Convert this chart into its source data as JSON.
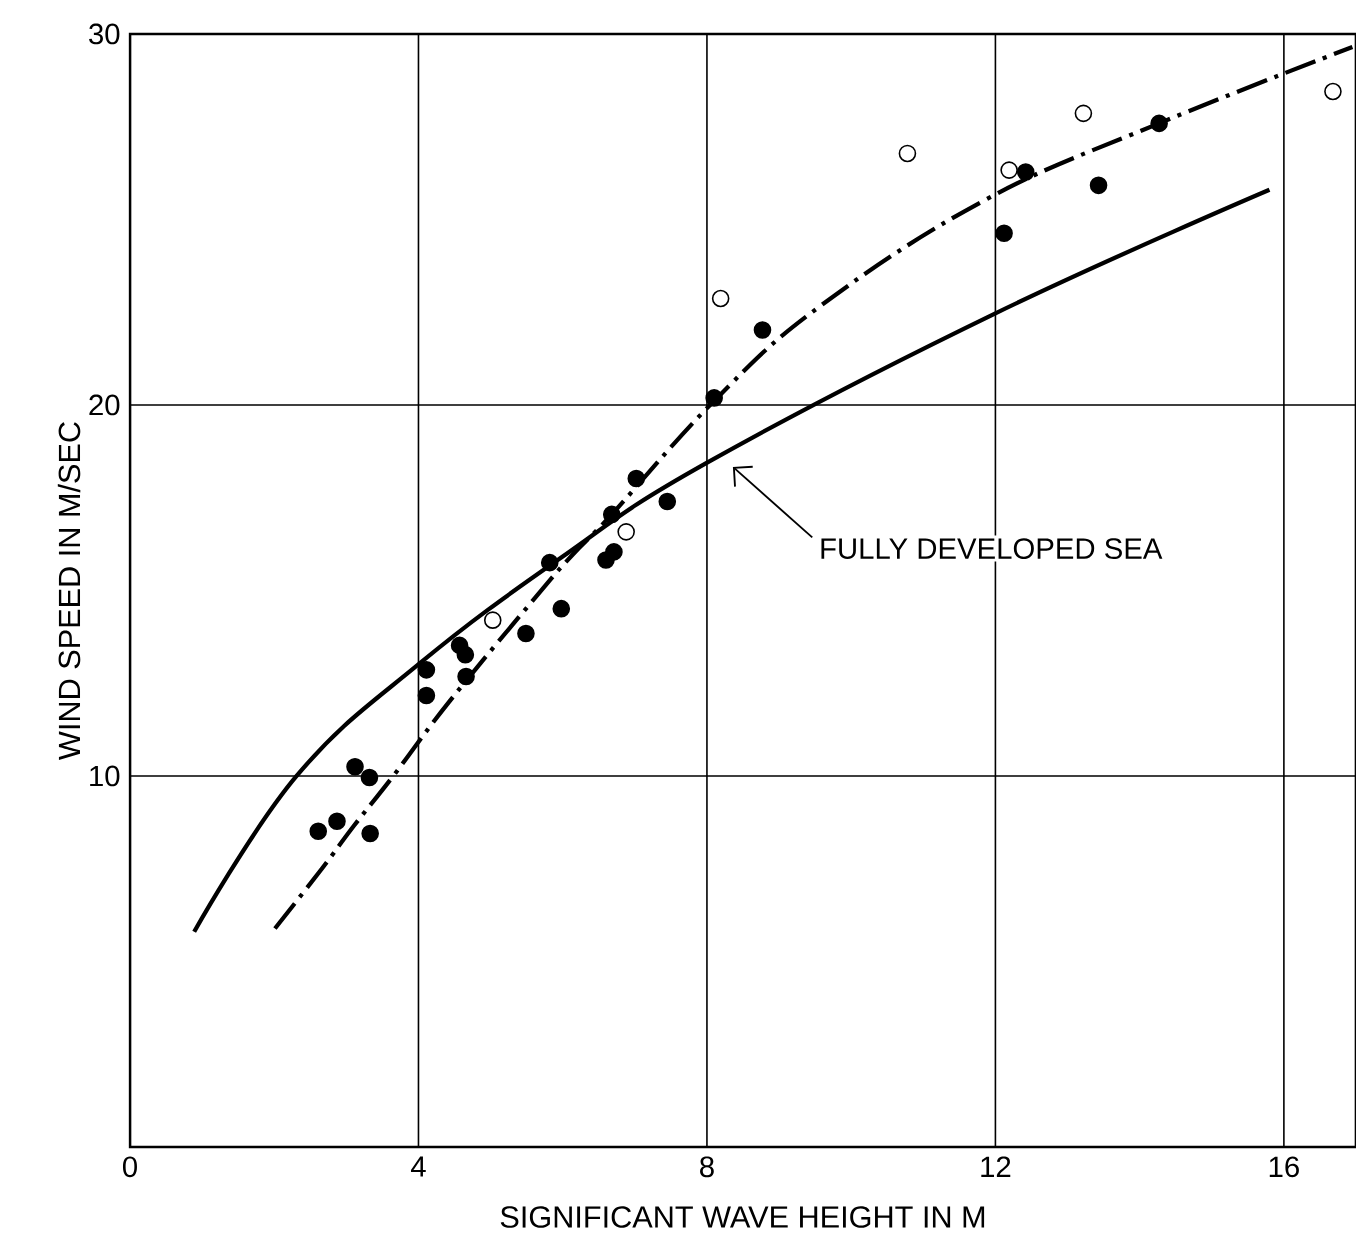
{
  "chart_data": {
    "type": "scatter",
    "xlabel": "SIGNIFICANT WAVE HEIGHT IN M",
    "ylabel": "WIND SPEED IN M/SEC",
    "xlim": [
      0,
      17
    ],
    "ylim": [
      0,
      30
    ],
    "xticks": [
      0,
      4,
      8,
      12,
      16
    ],
    "yticks": [
      10,
      20,
      30
    ],
    "grid": true,
    "series": [
      {
        "type": "line",
        "color": "#000000",
        "line_style": "solid",
        "marker": "none",
        "x": [
          0.89,
          2.31,
          4.02,
          5.96,
          7.99,
          12.0,
          15.8
        ],
        "values": [
          5.8,
          10.0,
          13.04,
          15.86,
          18.43,
          22.47,
          25.8
        ]
      },
      {
        "type": "line",
        "color": "#000000",
        "line_style": "dashdot",
        "marker": "none",
        "x": [
          2.01,
          2.66,
          3.11,
          3.65,
          4.43,
          5.59,
          6.14,
          6.68,
          8.11,
          9.56,
          11.86,
          14.27,
          16.95
        ],
        "values": [
          5.89,
          7.5,
          8.67,
          10.0,
          12.01,
          14.74,
          15.97,
          17.05,
          20.13,
          22.65,
          25.53,
          27.59,
          29.65
        ]
      },
      {
        "color": "#000000",
        "marker": "circle",
        "x": [
          2.61,
          2.87,
          3.33,
          3.12,
          3.32,
          4.11,
          4.11,
          4.57,
          4.65,
          4.66,
          5.49,
          5.98,
          5.82,
          6.6,
          6.71,
          6.68,
          7.02,
          7.45,
          8.1,
          8.77,
          12.12,
          12.42,
          13.43,
          14.27
        ],
        "values": [
          8.51,
          8.78,
          8.45,
          10.25,
          9.96,
          12.86,
          12.17,
          13.52,
          13.27,
          12.68,
          13.84,
          14.51,
          15.75,
          15.82,
          16.04,
          17.05,
          18.02,
          17.4,
          20.19,
          22.02,
          24.63,
          26.28,
          25.92,
          27.59
        ]
      },
      {
        "color": "#ffffff",
        "marker": "circle",
        "x": [
          5.03,
          6.88,
          8.19,
          10.78,
          12.19,
          13.22,
          16.68
        ],
        "values": [
          14.2,
          16.58,
          22.87,
          26.78,
          26.33,
          27.86,
          28.45
        ]
      }
    ],
    "annotations": [
      {
        "text": "FULLY DEVELOPED SEA",
        "x": 8.31,
        "y": 18.43
      }
    ]
  }
}
